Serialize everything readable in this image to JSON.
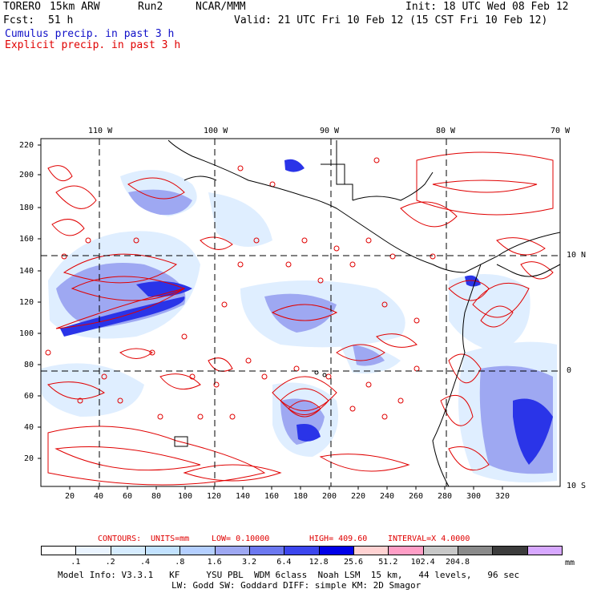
{
  "header": {
    "model": "TORERO",
    "resolution": "15km ARW",
    "run": "Run2",
    "org": "NCAR/MMM",
    "init": "Init: 18 UTC Wed 08 Feb 12",
    "fcst_label": "Fcst:",
    "fcst_value": "51 h",
    "valid": "Valid: 21 UTC Fri 10 Feb 12 (15 CST Fri 10 Feb 12)",
    "line_cumulus": "Cumulus precip. in past 3 h",
    "line_explicit": "Explicit precip. in past 3 h"
  },
  "colors": {
    "cumulus_title": "#1010c8",
    "explicit_title": "#e00000",
    "contour": "#e00000",
    "coast": "#000000"
  },
  "map": {
    "lon_labels": [
      "110 W",
      "100 W",
      "90 W",
      "80 W",
      "70 W"
    ],
    "lat_labels": [
      "10 N",
      "0",
      "10 S"
    ],
    "x_ticks": [
      "20",
      "40",
      "60",
      "80",
      "100",
      "120",
      "140",
      "160",
      "180",
      "200",
      "220",
      "240",
      "260",
      "280",
      "300",
      "320"
    ],
    "y_ticks": [
      "220",
      "200",
      "180",
      "160",
      "140",
      "120",
      "100",
      "80",
      "60",
      "40",
      "20"
    ]
  },
  "contours_info": {
    "label": "CONTOURS:",
    "units": "UNITS=mm",
    "low": "LOW= 0.10000",
    "high": "HIGH= 409.60",
    "interval": "INTERVAL=X 4.0000"
  },
  "colorbar": {
    "colors": [
      "#ffffff",
      "#eaf4ff",
      "#d6ecff",
      "#c2e2ff",
      "#b4cfff",
      "#9ea8f2",
      "#6c78f0",
      "#3c46ee",
      "#0000e8",
      "#ffd2d2",
      "#ff9ec6",
      "#c8c8c8",
      "#8a8a8a",
      "#3c3c3c",
      "#d7a8ff"
    ],
    "labels": [
      ".1",
      ".2",
      ".4",
      ".8",
      "1.6",
      "3.2",
      "6.4",
      "12.8",
      "25.6",
      "51.2",
      "102.4",
      "204.8"
    ],
    "unit": "mm"
  },
  "model_info": {
    "line1": "Model Info: V3.3.1   KF     YSU PBL  WDM 6class  Noah LSM  15 km,   44 levels,   96 sec",
    "line2": "LW: Godd SW: Goddard DIFF: simple KM: 2D Smagor"
  }
}
